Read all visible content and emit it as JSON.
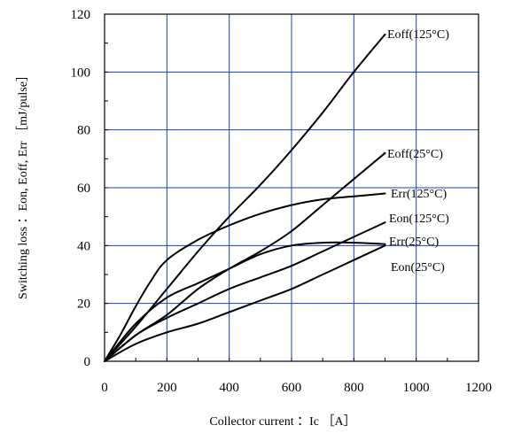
{
  "chart_data": {
    "type": "line",
    "title": "",
    "xlabel": "Collector current ：Ic ［A］",
    "ylabel": "Switching loss ：Eon, Eoff, Err ［mJ/pulse］",
    "xlim": [
      0,
      1200
    ],
    "ylim": [
      0,
      120
    ],
    "xticks": [
      0,
      200,
      400,
      600,
      800,
      1000,
      1200
    ],
    "yticks": [
      0,
      20,
      40,
      60,
      80,
      100,
      120
    ],
    "x_tick_labels": [
      "0",
      "200",
      "400",
      "600",
      "800",
      "1000",
      "1200"
    ],
    "y_tick_labels": [
      "0",
      "20",
      "40",
      "60",
      "80",
      "100",
      "120"
    ],
    "grid": true,
    "grid_color": "#1f3fbf",
    "line_color": "#000000",
    "series": [
      {
        "name": "Eoff(125°C)",
        "x": [
          0,
          100,
          200,
          300,
          400,
          500,
          600,
          700,
          800,
          900
        ],
        "y": [
          0,
          12,
          25,
          38,
          50,
          61,
          73,
          86,
          100,
          113
        ]
      },
      {
        "name": "Eoff(25°C)",
        "x": [
          0,
          100,
          200,
          300,
          400,
          500,
          600,
          700,
          800,
          900
        ],
        "y": [
          0,
          9,
          16,
          25,
          32,
          38,
          45,
          54,
          63,
          72
        ]
      },
      {
        "name": "Err(125°C)",
        "x": [
          0,
          50,
          100,
          150,
          200,
          300,
          400,
          500,
          600,
          700,
          800,
          900
        ],
        "y": [
          0,
          9,
          19,
          28,
          35,
          42,
          47,
          51,
          54,
          56,
          57,
          58
        ]
      },
      {
        "name": "Eon(125°C)",
        "x": [
          0,
          100,
          200,
          300,
          400,
          500,
          600,
          700,
          800,
          900
        ],
        "y": [
          0,
          9,
          15,
          20,
          25,
          29,
          33,
          38,
          43,
          48
        ]
      },
      {
        "name": "Err(25°C)",
        "x": [
          0,
          100,
          200,
          300,
          400,
          500,
          600,
          700,
          800,
          900
        ],
        "y": [
          0,
          13,
          22,
          27,
          32,
          37,
          40,
          41,
          41,
          40.5
        ]
      },
      {
        "name": "Eon(25°C)",
        "x": [
          0,
          100,
          200,
          300,
          400,
          500,
          600,
          700,
          800,
          900
        ],
        "y": [
          0,
          6,
          10,
          13,
          17,
          21,
          25,
          30,
          35,
          40
        ]
      }
    ]
  }
}
